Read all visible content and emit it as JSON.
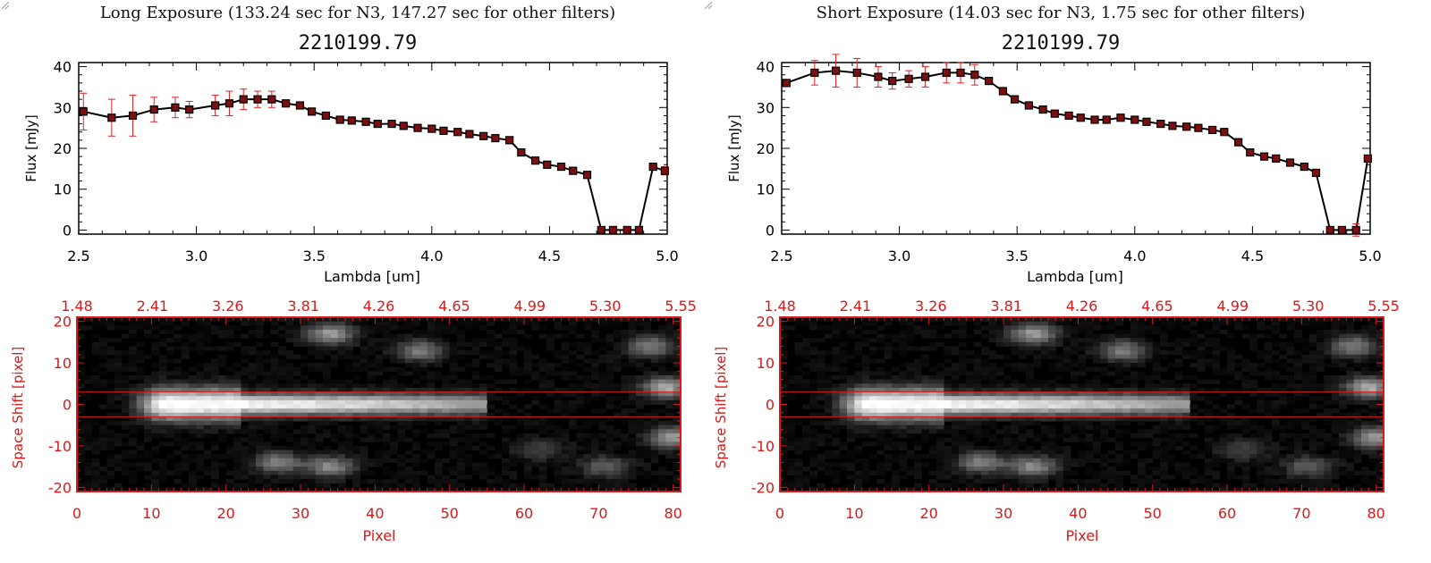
{
  "panels": [
    {
      "title": "Long Exposure (133.24 sec for N3, 147.27 sec for other filters)",
      "chart_title": "2210199.79",
      "ylabel": "Flux [mJy]",
      "xlabel": "Lambda [um]",
      "image_ylabel": "Space Shift [pixel]",
      "image_xlabel": "Pixel"
    },
    {
      "title": "Short Exposure (14.03 sec for N3, 1.75 sec for other filters)",
      "chart_title": "2210199.79",
      "ylabel": "Flux [mJy]",
      "xlabel": "Lambda [um]",
      "image_ylabel": "Space Shift [pixel]",
      "image_xlabel": "Pixel"
    }
  ],
  "colors": {
    "axis_red": "#d41a1a",
    "line": "#000000",
    "marker": "#7a1010",
    "errorbar": "#e02020",
    "image_bg": "#000000"
  },
  "chart_data": [
    {
      "type": "line",
      "title": "2210199.79",
      "xlabel": "Lambda [um]",
      "ylabel": "Flux [mJy]",
      "xlim": [
        2.5,
        5.0
      ],
      "ylim": [
        -1,
        41
      ],
      "x_ticks": [
        "2.5",
        "3.0",
        "3.5",
        "4.0",
        "4.5",
        "5.0"
      ],
      "y_ticks": [
        "0",
        "10",
        "20",
        "30",
        "40"
      ],
      "x": [
        2.52,
        2.64,
        2.73,
        2.82,
        2.91,
        2.97,
        3.08,
        3.14,
        3.2,
        3.26,
        3.32,
        3.38,
        3.44,
        3.49,
        3.55,
        3.61,
        3.66,
        3.72,
        3.77,
        3.83,
        3.88,
        3.94,
        4.0,
        4.05,
        4.11,
        4.16,
        4.22,
        4.27,
        4.33,
        4.38,
        4.44,
        4.49,
        4.55,
        4.6,
        4.66,
        4.72,
        4.77,
        4.83,
        4.88,
        4.94,
        4.99
      ],
      "y": [
        29.0,
        27.5,
        28.0,
        29.5,
        30.0,
        29.5,
        30.5,
        31.0,
        32.0,
        32.0,
        32.0,
        31.0,
        30.5,
        29.0,
        28.0,
        27.0,
        26.8,
        26.5,
        26.0,
        26.0,
        25.5,
        25.0,
        24.8,
        24.3,
        24.0,
        23.5,
        23.0,
        22.5,
        22.0,
        19.0,
        17.0,
        16.0,
        15.5,
        14.5,
        13.5,
        0,
        0,
        0,
        0,
        15.5,
        14.5
      ],
      "yerr": [
        4.5,
        4.5,
        5.0,
        3.0,
        2.5,
        2.0,
        2.5,
        3.0,
        2.5,
        2.0,
        2.0,
        0,
        0,
        0,
        0,
        0,
        0,
        0,
        0,
        0,
        0,
        0,
        0,
        0,
        0,
        0,
        0,
        0,
        0,
        0,
        0,
        0,
        0,
        0,
        0,
        0,
        0,
        0,
        0,
        0.8,
        1.0
      ]
    },
    {
      "type": "heatmap",
      "xlabel": "Pixel",
      "ylabel": "Space Shift [pixel]",
      "xlim": [
        0,
        81
      ],
      "ylim": [
        -21,
        21
      ],
      "x_ticks": [
        "0",
        "10",
        "20",
        "30",
        "40",
        "50",
        "60",
        "70",
        "80"
      ],
      "y_ticks": [
        "-20",
        "-10",
        "0",
        "10",
        "20"
      ],
      "top_axis_ticks": [
        "1.48",
        "2.41",
        "3.26",
        "3.81",
        "4.26",
        "4.65",
        "4.99",
        "5.30",
        "5.55"
      ],
      "aperture_lines": [
        3,
        -3
      ],
      "sources": [
        {
          "x": 12,
          "y": 0,
          "peak": 255,
          "desc": "bright trace"
        },
        {
          "x": 34,
          "y": 17,
          "peak": 150
        },
        {
          "x": 46,
          "y": 13,
          "peak": 120
        },
        {
          "x": 77,
          "y": 14,
          "peak": 120
        },
        {
          "x": 79,
          "y": 4,
          "peak": 170
        },
        {
          "x": 80,
          "y": -8,
          "peak": 150
        },
        {
          "x": 27,
          "y": -14,
          "peak": 120
        },
        {
          "x": 34,
          "y": -15,
          "peak": 130
        },
        {
          "x": 71,
          "y": -15,
          "peak": 90
        },
        {
          "x": 62,
          "y": -11,
          "peak": 60
        }
      ]
    },
    {
      "type": "line",
      "title": "2210199.79",
      "xlabel": "Lambda [um]",
      "ylabel": "Flux [mJy]",
      "xlim": [
        2.5,
        5.0
      ],
      "ylim": [
        -1,
        41
      ],
      "x_ticks": [
        "2.5",
        "3.0",
        "3.5",
        "4.0",
        "4.5",
        "5.0"
      ],
      "y_ticks": [
        "0",
        "10",
        "20",
        "30",
        "40"
      ],
      "x": [
        2.52,
        2.64,
        2.73,
        2.82,
        2.91,
        2.97,
        3.04,
        3.11,
        3.2,
        3.26,
        3.32,
        3.38,
        3.44,
        3.49,
        3.55,
        3.61,
        3.66,
        3.72,
        3.77,
        3.83,
        3.88,
        3.94,
        4.0,
        4.05,
        4.11,
        4.16,
        4.22,
        4.27,
        4.33,
        4.38,
        4.44,
        4.49,
        4.55,
        4.6,
        4.66,
        4.72,
        4.77,
        4.83,
        4.88,
        4.94,
        4.99
      ],
      "y": [
        36.0,
        38.5,
        39.0,
        38.5,
        37.5,
        36.5,
        37.0,
        37.5,
        38.5,
        38.5,
        38.0,
        36.5,
        34.0,
        32.0,
        30.5,
        29.5,
        28.5,
        28.0,
        27.5,
        27.0,
        27.0,
        27.5,
        27.0,
        26.5,
        26.0,
        25.5,
        25.3,
        25.0,
        24.5,
        24.0,
        21.5,
        19.0,
        18.0,
        17.5,
        16.5,
        15.5,
        14.0,
        0,
        0,
        0,
        17.5
      ],
      "yerr": [
        0,
        3.0,
        4.0,
        3.5,
        2.5,
        2.0,
        2.0,
        2.5,
        2.5,
        2.5,
        2.5,
        0,
        0,
        0,
        0,
        0,
        0,
        0,
        0,
        0,
        0,
        0,
        0,
        0,
        0,
        0,
        0,
        0,
        0,
        0,
        0,
        0,
        0,
        0,
        0,
        0,
        0,
        0,
        0,
        1.5,
        0
      ]
    },
    {
      "type": "heatmap",
      "xlabel": "Pixel",
      "ylabel": "Space Shift [pixel]",
      "xlim": [
        0,
        81
      ],
      "ylim": [
        -21,
        21
      ],
      "x_ticks": [
        "0",
        "10",
        "20",
        "30",
        "40",
        "50",
        "60",
        "70",
        "80"
      ],
      "y_ticks": [
        "-20",
        "-10",
        "0",
        "10",
        "20"
      ],
      "top_axis_ticks": [
        "1.48",
        "2.41",
        "3.26",
        "3.81",
        "4.26",
        "4.65",
        "4.99",
        "5.30",
        "5.55"
      ],
      "aperture_lines": [
        3,
        -3
      ],
      "sources": [
        {
          "x": 12,
          "y": 0,
          "peak": 255,
          "desc": "bright trace"
        },
        {
          "x": 34,
          "y": 17,
          "peak": 150
        },
        {
          "x": 46,
          "y": 13,
          "peak": 120
        },
        {
          "x": 77,
          "y": 14,
          "peak": 120
        },
        {
          "x": 79,
          "y": 4,
          "peak": 170
        },
        {
          "x": 80,
          "y": -8,
          "peak": 150
        },
        {
          "x": 27,
          "y": -14,
          "peak": 120
        },
        {
          "x": 34,
          "y": -15,
          "peak": 130
        },
        {
          "x": 71,
          "y": -15,
          "peak": 90
        },
        {
          "x": 62,
          "y": -11,
          "peak": 60
        }
      ]
    }
  ]
}
